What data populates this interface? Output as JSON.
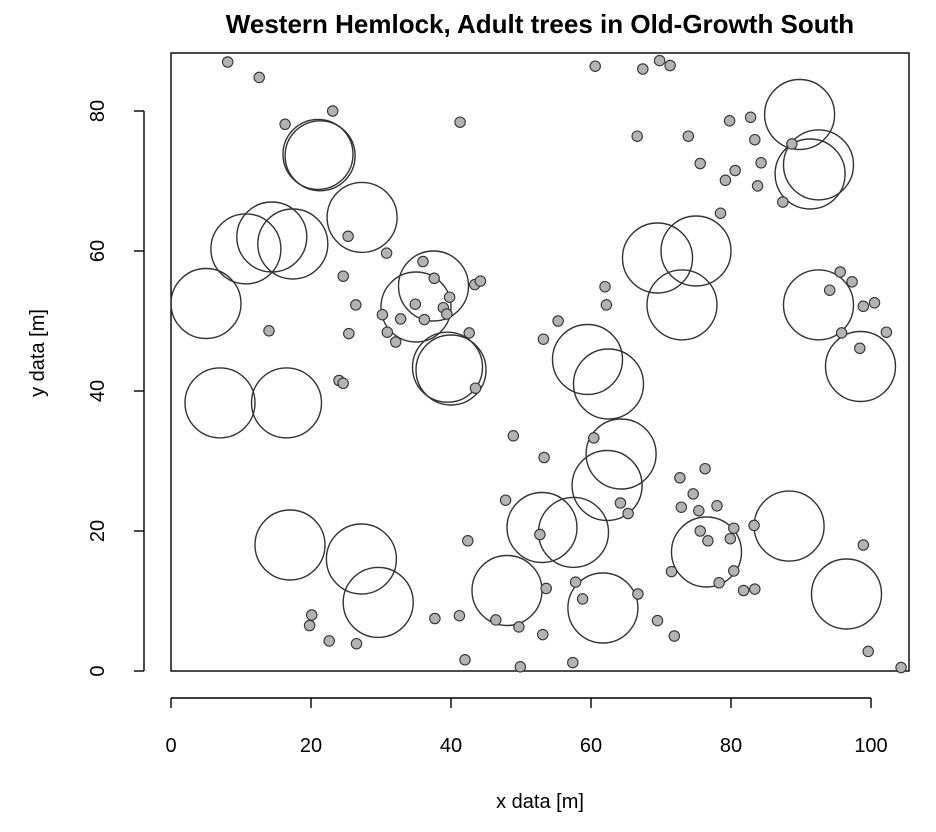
{
  "chart_data": {
    "type": "scatter",
    "title": "Western Hemlock, Adult trees in Old-Growth South",
    "xlabel": "x data [m]",
    "ylabel": "y data [m]",
    "xlim": [
      0,
      105
    ],
    "ylim": [
      0,
      88
    ],
    "xticks": [
      0,
      20,
      40,
      60,
      80,
      100
    ],
    "yticks": [
      0,
      20,
      40,
      60,
      80
    ],
    "circle_radius_m": 5,
    "series": [
      {
        "marker": "open-circle",
        "color": "#333333",
        "points": [
          [
            21,
            73.8
          ],
          [
            21.3,
            73.6
          ],
          [
            27.3,
            64.8
          ],
          [
            14.4,
            62
          ],
          [
            17.4,
            61
          ],
          [
            10.7,
            60.3
          ],
          [
            5,
            52.5
          ],
          [
            35,
            52
          ],
          [
            37.5,
            55
          ],
          [
            39.5,
            43.4
          ],
          [
            40,
            43
          ],
          [
            7,
            38.3
          ],
          [
            16.5,
            38.3
          ],
          [
            17,
            18
          ],
          [
            27.2,
            16
          ],
          [
            29.6,
            9.8
          ],
          [
            48,
            11.5
          ],
          [
            53,
            20.5
          ],
          [
            57.5,
            19.8
          ],
          [
            59.5,
            44.5
          ],
          [
            62.5,
            41
          ],
          [
            62.3,
            26.5
          ],
          [
            64.3,
            31
          ],
          [
            61.7,
            9
          ],
          [
            69.5,
            59
          ],
          [
            75,
            60
          ],
          [
            73,
            52.3
          ],
          [
            76.5,
            17
          ],
          [
            89.8,
            79.5
          ],
          [
            91.3,
            71
          ],
          [
            92.5,
            72.3
          ],
          [
            92.5,
            52.3
          ],
          [
            98.5,
            43.5
          ],
          [
            88.3,
            20.7
          ],
          [
            96.5,
            11
          ]
        ]
      },
      {
        "marker": "filled-point",
        "color": "#b3b3b3",
        "points": [
          [
            8.1,
            87
          ],
          [
            12.6,
            84.8
          ],
          [
            16.3,
            78.1
          ],
          [
            23.1,
            80
          ],
          [
            41.3,
            78.4
          ],
          [
            60.6,
            86.4
          ],
          [
            67.4,
            86
          ],
          [
            69.8,
            87.2
          ],
          [
            71.3,
            86.5
          ],
          [
            66.6,
            76.4
          ],
          [
            73.9,
            76.4
          ],
          [
            79.8,
            78.6
          ],
          [
            82.8,
            79.1
          ],
          [
            75.6,
            72.5
          ],
          [
            80.6,
            71.5
          ],
          [
            79.2,
            70.1
          ],
          [
            83.4,
            75.9
          ],
          [
            84.3,
            72.6
          ],
          [
            83.8,
            69.3
          ],
          [
            87.4,
            67
          ],
          [
            88.7,
            75.3
          ],
          [
            78.5,
            65.4
          ],
          [
            25.3,
            62.1
          ],
          [
            30.8,
            59.7
          ],
          [
            24.6,
            56.4
          ],
          [
            26.4,
            52.3
          ],
          [
            25.4,
            48.2
          ],
          [
            14,
            48.6
          ],
          [
            30.2,
            50.9
          ],
          [
            30.9,
            48.4
          ],
          [
            32.1,
            47
          ],
          [
            32.8,
            50.3
          ],
          [
            34.9,
            52.4
          ],
          [
            36,
            58.5
          ],
          [
            36.2,
            50.2
          ],
          [
            37.6,
            56.1
          ],
          [
            38.9,
            51.9
          ],
          [
            39.4,
            51
          ],
          [
            39.8,
            53.4
          ],
          [
            43.4,
            55.2
          ],
          [
            44.2,
            55.7
          ],
          [
            42.6,
            48.3
          ],
          [
            43.5,
            40.4
          ],
          [
            24,
            41.5
          ],
          [
            24.6,
            41.1
          ],
          [
            53.2,
            47.4
          ],
          [
            55.3,
            50
          ],
          [
            62,
            54.9
          ],
          [
            62.2,
            52.3
          ],
          [
            95.6,
            57
          ],
          [
            94.1,
            54.4
          ],
          [
            97.3,
            55.6
          ],
          [
            98.9,
            52.1
          ],
          [
            100.5,
            52.6
          ],
          [
            102.2,
            48.4
          ],
          [
            95.8,
            48.3
          ],
          [
            98.4,
            46.1
          ],
          [
            48.9,
            33.6
          ],
          [
            53.3,
            30.5
          ],
          [
            60.4,
            33.3
          ],
          [
            72.7,
            27.6
          ],
          [
            74.6,
            25.3
          ],
          [
            75.4,
            22.9
          ],
          [
            76.3,
            28.9
          ],
          [
            78,
            23.6
          ],
          [
            72.9,
            23.4
          ],
          [
            64.2,
            24
          ],
          [
            65.3,
            22.5
          ],
          [
            47.8,
            24.4
          ],
          [
            52.7,
            19.5
          ],
          [
            42.4,
            18.6
          ],
          [
            75.6,
            20
          ],
          [
            76.7,
            18.6
          ],
          [
            79.9,
            18.9
          ],
          [
            80.4,
            20.4
          ],
          [
            83.3,
            20.8
          ],
          [
            71.5,
            14.2
          ],
          [
            80.4,
            14.3
          ],
          [
            78.3,
            12.6
          ],
          [
            81.8,
            11.5
          ],
          [
            83.4,
            11.7
          ],
          [
            98.9,
            18
          ],
          [
            57.8,
            12.7
          ],
          [
            53.6,
            11.8
          ],
          [
            58.8,
            10.3
          ],
          [
            66.7,
            11
          ],
          [
            37.7,
            7.5
          ],
          [
            41.2,
            7.9
          ],
          [
            46.4,
            7.3
          ],
          [
            49.7,
            6.3
          ],
          [
            53.1,
            5.2
          ],
          [
            69.5,
            7.2
          ],
          [
            71.9,
            5
          ],
          [
            19.8,
            6.5
          ],
          [
            20.1,
            8
          ],
          [
            22.6,
            4.3
          ],
          [
            26.5,
            3.9
          ],
          [
            42,
            1.6
          ],
          [
            49.9,
            0.6
          ],
          [
            57.4,
            1.2
          ],
          [
            99.6,
            2.8
          ],
          [
            104.3,
            0.5
          ]
        ]
      }
    ]
  }
}
